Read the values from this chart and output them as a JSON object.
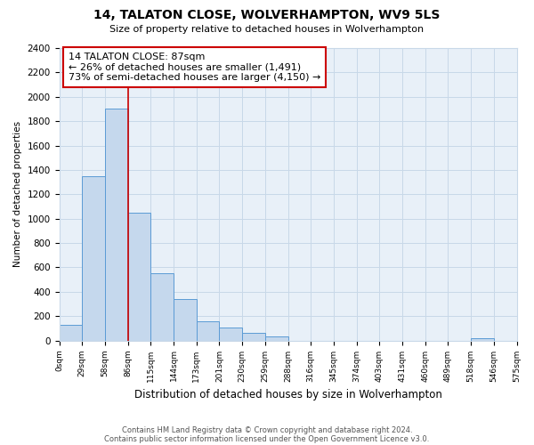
{
  "title": "14, TALATON CLOSE, WOLVERHAMPTON, WV9 5LS",
  "subtitle": "Size of property relative to detached houses in Wolverhampton",
  "xlabel": "Distribution of detached houses by size in Wolverhampton",
  "ylabel": "Number of detached properties",
  "bar_values": [
    125,
    1350,
    1900,
    1050,
    550,
    340,
    155,
    110,
    60,
    35,
    0,
    0,
    0,
    0,
    0,
    0,
    0,
    0,
    20,
    0
  ],
  "bin_labels": [
    "0sqm",
    "29sqm",
    "58sqm",
    "86sqm",
    "115sqm",
    "144sqm",
    "173sqm",
    "201sqm",
    "230sqm",
    "259sqm",
    "288sqm",
    "316sqm",
    "345sqm",
    "374sqm",
    "403sqm",
    "431sqm",
    "460sqm",
    "489sqm",
    "518sqm",
    "546sqm",
    "575sqm"
  ],
  "bar_color": "#c5d8ed",
  "bar_edge_color": "#5b9bd5",
  "property_line_color": "#cc0000",
  "annotation_title": "14 TALATON CLOSE: 87sqm",
  "annotation_line1": "← 26% of detached houses are smaller (1,491)",
  "annotation_line2": "73% of semi-detached houses are larger (4,150) →",
  "annotation_box_color": "#ffffff",
  "annotation_box_edge": "#cc0000",
  "ylim": [
    0,
    2400
  ],
  "yticks": [
    0,
    200,
    400,
    600,
    800,
    1000,
    1200,
    1400,
    1600,
    1800,
    2000,
    2200,
    2400
  ],
  "footer1": "Contains HM Land Registry data © Crown copyright and database right 2024.",
  "footer2": "Contains public sector information licensed under the Open Government Licence v3.0.",
  "bg_color": "#ffffff",
  "grid_color": "#c8d8e8"
}
